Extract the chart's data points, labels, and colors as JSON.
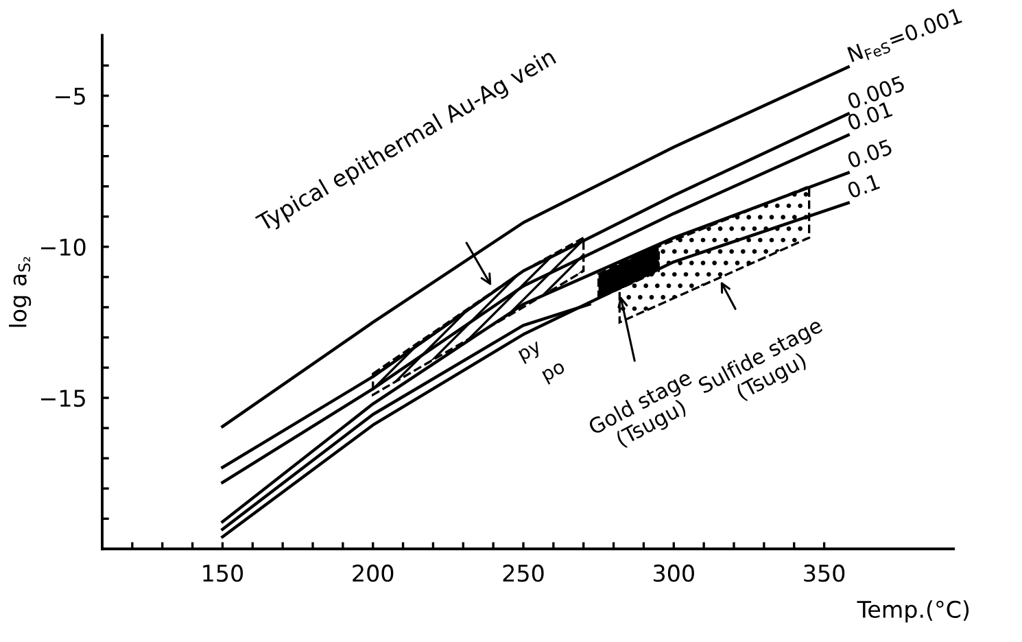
{
  "chart_data": {
    "type": "line",
    "xlabel": "Temp.(°C)",
    "ylabel": "log a$_{S₂}$",
    "xlim": [
      110,
      393
    ],
    "ylim": [
      -20,
      -3
    ],
    "xticks": [
      {
        "value": 120,
        "label": null
      },
      {
        "value": 130,
        "label": null
      },
      {
        "value": 140,
        "label": null
      },
      150,
      {
        "value": 160,
        "label": null
      },
      {
        "value": 170,
        "label": null
      },
      {
        "value": 180,
        "label": null
      },
      {
        "value": 190,
        "label": null
      },
      200,
      {
        "value": 210,
        "label": null
      },
      {
        "value": 220,
        "label": null
      },
      {
        "value": 230,
        "label": null
      },
      {
        "value": 240,
        "label": null
      },
      250,
      {
        "value": 260,
        "label": null
      },
      {
        "value": 270,
        "label": null
      },
      {
        "value": 280,
        "label": null
      },
      {
        "value": 290,
        "label": null
      },
      300,
      {
        "value": 310,
        "label": null
      },
      {
        "value": 320,
        "label": null
      },
      {
        "value": 330,
        "label": null
      },
      {
        "value": 340,
        "label": null
      },
      350
    ],
    "yticks": [
      {
        "value": -19,
        "label": null
      },
      {
        "value": -18,
        "label": null
      },
      {
        "value": -17,
        "label": null
      },
      {
        "value": -16,
        "label": null
      },
      -15,
      {
        "value": -14,
        "label": null
      },
      {
        "value": -13,
        "label": null
      },
      {
        "value": -12,
        "label": null
      },
      {
        "value": -11,
        "label": null
      },
      -10,
      {
        "value": -9,
        "label": null
      },
      {
        "value": -8,
        "label": null
      },
      {
        "value": -7,
        "label": null
      },
      {
        "value": -6,
        "label": null
      },
      -5,
      {
        "value": -4,
        "label": null
      }
    ],
    "grid": false,
    "legend": false,
    "marker": "none",
    "line_style": "solid",
    "series": [
      {
        "name": "N$_{FeS}$=0.001",
        "color": "#000000",
        "x": [
          150,
          200,
          250,
          300,
          358
        ],
        "values": [
          -15.95,
          -12.5,
          -9.2,
          -6.7,
          -4.05
        ]
      },
      {
        "name": "0.005",
        "color": "#000000",
        "x": [
          150,
          200,
          250,
          300,
          358
        ],
        "values": [
          -17.3,
          -14.3,
          -10.8,
          -8.3,
          -5.6
        ]
      },
      {
        "name": "0.01",
        "color": "#000000",
        "x": [
          150,
          200,
          250,
          300,
          358
        ],
        "values": [
          -17.8,
          -14.7,
          -11.3,
          -8.9,
          -6.3
        ]
      },
      {
        "name": "0.05",
        "color": "#000000",
        "x": [
          150,
          200,
          250,
          300,
          358
        ],
        "values": [
          -19.1,
          -15.2,
          -11.9,
          -9.7,
          -7.55
        ]
      },
      {
        "color": "#000000",
        "x": [
          150,
          200,
          250,
          272
        ],
        "values": [
          -19.35,
          -15.55,
          -12.6,
          -11.9
        ]
      },
      {
        "name": "0.1",
        "color": "#000000",
        "x": [
          150,
          200,
          250,
          300,
          358
        ],
        "values": [
          -19.6,
          -15.9,
          -12.9,
          -10.5,
          -8.55
        ]
      },
      {
        "color": "#000000",
        "x": [
          200,
          250,
          270
        ],
        "values": [
          null,
          null,
          null
        ],
        "lower": [
          -14.9,
          -12.0,
          -10.8
        ],
        "upper": [
          -14.2,
          -10.8,
          -9.7
        ]
      },
      {
        "color": "#000000",
        "x": [
          282,
          345
        ],
        "values": [
          null,
          null
        ],
        "lower": [
          -12.5,
          -9.7
        ],
        "upper": [
          -10.5,
          -8.0
        ]
      },
      {
        "color": "#000000",
        "x": [
          275,
          295
        ],
        "values": [
          null,
          null
        ],
        "lower": [
          -11.7,
          -10.8
        ],
        "upper": [
          -10.9,
          -9.95
        ]
      }
    ],
    "annotations": [
      {
        "text": "Typical epithermal Au-Ag vein",
        "x": 240,
        "y": -11.4
      },
      "py",
      "po",
      {
        "text": "Gold stage\n(Tsugu)",
        "x": 282,
        "y": -11.5
      },
      {
        "text": "Sulfide stage\n(Tsugu)",
        "x": 315,
        "y": -11.03
      }
    ]
  }
}
